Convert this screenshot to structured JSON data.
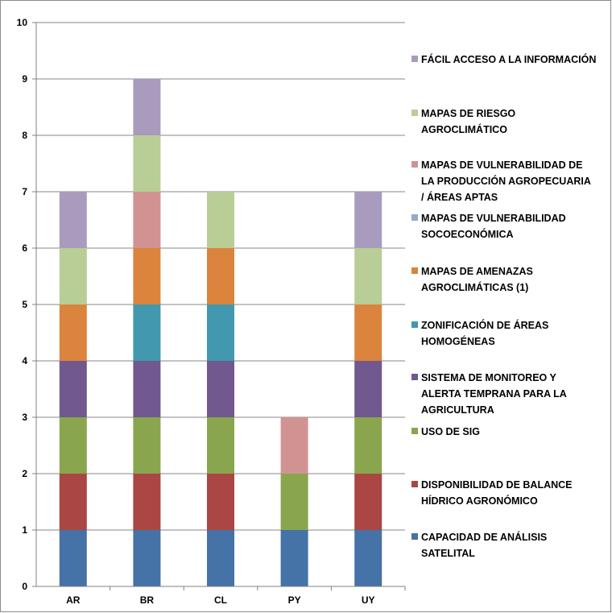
{
  "chart_data": {
    "type": "bar",
    "stacked": true,
    "categories": [
      "AR",
      "BR",
      "CL",
      "PY",
      "UY"
    ],
    "ylim": [
      0,
      10
    ],
    "yticks": [
      0,
      1,
      2,
      3,
      4,
      5,
      6,
      7,
      8,
      9,
      10
    ],
    "grid": true,
    "legend_position": "right",
    "series": [
      {
        "name": "CAPACIDAD DE ANÁLISIS SATELITAL",
        "color": "#4572a7",
        "values": [
          1,
          1,
          1,
          1,
          1
        ]
      },
      {
        "name": "DISPONIBILIDAD DE BALANCE HÍDRICO AGRONÓMICO",
        "color": "#aa4643",
        "values": [
          1,
          1,
          1,
          0,
          1
        ]
      },
      {
        "name": "USO DE SIG",
        "color": "#89a54e",
        "values": [
          1,
          1,
          1,
          1,
          1
        ]
      },
      {
        "name": "SISTEMA DE MONITOREO Y ALERTA TEMPRANA PARA LA AGRICULTURA",
        "color": "#71588f",
        "values": [
          1,
          1,
          1,
          0,
          1
        ]
      },
      {
        "name": "ZONIFICACIÓN DE ÁREAS HOMOGÉNEAS",
        "color": "#4198af",
        "values": [
          0,
          1,
          1,
          0,
          0
        ]
      },
      {
        "name": "MAPAS DE AMENAZAS AGROCLIMÁTICAS (1)",
        "color": "#db843d",
        "values": [
          1,
          1,
          1,
          0,
          1
        ]
      },
      {
        "name": "MAPAS DE VULNERABILIDAD SOCOECONÓMICA",
        "color": "#93a9cf",
        "values": [
          0,
          0,
          0,
          0,
          0
        ]
      },
      {
        "name": "MAPAS DE VULNERABILIDAD DE LA PRODUCCIÓN AGROPECUARIA / ÁREAS APTAS",
        "color": "#d19392",
        "values": [
          0,
          1,
          0,
          1,
          0
        ]
      },
      {
        "name": "MAPAS DE RIESGO AGROCLIMÁTICO",
        "color": "#b9cd96",
        "values": [
          1,
          1,
          1,
          0,
          1
        ]
      },
      {
        "name": "FÁCIL ACCESO A LA INFORMACIÓN",
        "color": "#a99bbd",
        "values": [
          1,
          1,
          0,
          0,
          1
        ]
      }
    ],
    "legend_lines": [
      [
        "FÁCIL ACCESO A LA INFORMACIÓN"
      ],
      [
        "MAPAS DE RIESGO",
        "AGROCLIMÁTICO"
      ],
      [
        "MAPAS DE VULNERABILIDAD DE",
        "LA PRODUCCIÓN AGROPECUARIA",
        "/ ÁREAS APTAS"
      ],
      [
        "MAPAS DE VULNERABILIDAD",
        "SOCOECONÓMICA"
      ],
      [
        "MAPAS DE AMENAZAS",
        "AGROCLIMÁTICAS (1)"
      ],
      [
        "ZONIFICACIÓN DE ÁREAS",
        "HOMOGÉNEAS"
      ],
      [
        "SISTEMA DE MONITOREO Y",
        "ALERTA TEMPRANA PARA LA",
        "AGRICULTURA"
      ],
      [
        "USO DE SIG"
      ],
      [
        "DISPONIBILIDAD DE BALANCE",
        "HÍDRICO AGRONÓMICO"
      ],
      [
        "CAPACIDAD DE ANÁLISIS",
        "SATELITAL"
      ]
    ],
    "gridline_color": "#878787",
    "axis_color": "#808080"
  }
}
